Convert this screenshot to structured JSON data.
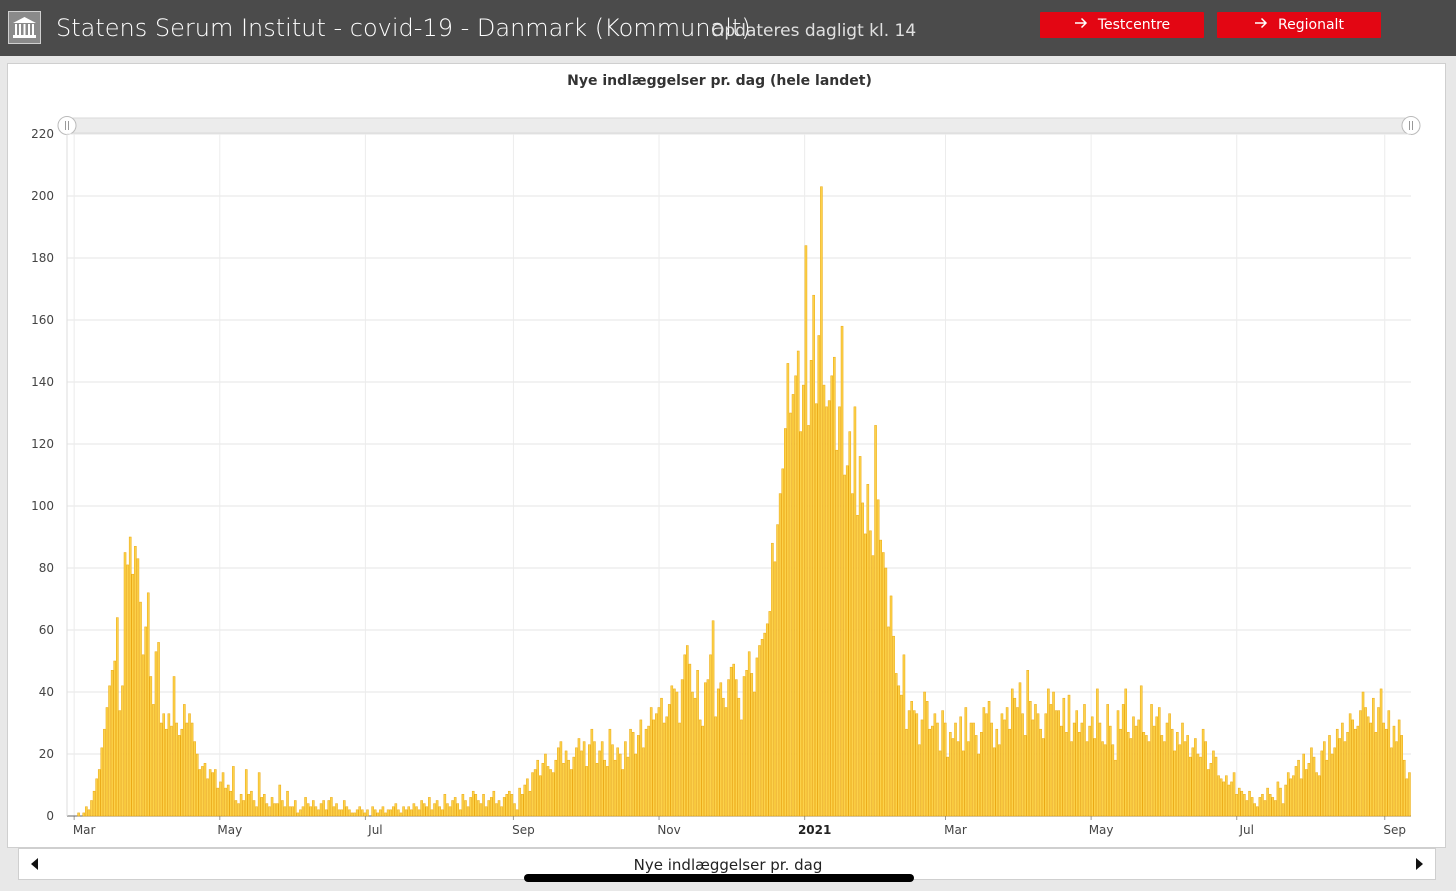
{
  "header": {
    "title": "Statens Serum Institut - covid-19 - Danmark (Kommunalt)",
    "subtitle": "Opdateres dagligt kl. 14",
    "logo_icon": "institute-building-icon",
    "buttons": [
      {
        "label": "Testcentre",
        "icon": "arrow-right-icon"
      },
      {
        "label": "Regionalt",
        "icon": "arrow-right-icon"
      }
    ],
    "accent": "#e30613",
    "bar_color": "#4b4b4b"
  },
  "chart_title": "Nye indlæggelser pr. dag (hele landet)",
  "footer": {
    "label": "Nye indlæggelser pr. dag",
    "prev_icon": "triangle-left-icon",
    "next_icon": "triangle-right-icon"
  },
  "chart_data": {
    "type": "bar",
    "title": "Nye indlæggelser pr. dag (hele landet)",
    "xlabel": "",
    "ylabel": "",
    "ylim": [
      0,
      220
    ],
    "yticks": [
      0,
      20,
      40,
      60,
      80,
      100,
      120,
      140,
      160,
      180,
      200,
      220
    ],
    "x_start": "2020-02-27",
    "x_end": "2021-09-12",
    "xtick_labels": [
      {
        "date": "2020-03-01",
        "label": "Mar",
        "bold": false
      },
      {
        "date": "2020-05-01",
        "label": "May",
        "bold": false
      },
      {
        "date": "2020-07-01",
        "label": "Jul",
        "bold": false
      },
      {
        "date": "2020-09-01",
        "label": "Sep",
        "bold": false
      },
      {
        "date": "2020-11-01",
        "label": "Nov",
        "bold": false
      },
      {
        "date": "2021-01-01",
        "label": "2021",
        "bold": true
      },
      {
        "date": "2021-03-01",
        "label": "Mar",
        "bold": false
      },
      {
        "date": "2021-05-01",
        "label": "May",
        "bold": false
      },
      {
        "date": "2021-07-01",
        "label": "Jul",
        "bold": false
      },
      {
        "date": "2021-09-01",
        "label": "Sep",
        "bold": false
      }
    ],
    "grid": true,
    "bar_fill": "#fcd24a",
    "bar_stroke": "#eba812",
    "series": [
      {
        "values": [
          0,
          1,
          0,
          1,
          3,
          2,
          5,
          8,
          12,
          15,
          22,
          28,
          35,
          42,
          47,
          50,
          64,
          34,
          42,
          85,
          81,
          90,
          78,
          87,
          83,
          69,
          52,
          61,
          72,
          45,
          36,
          53,
          56,
          30,
          33,
          28,
          33,
          29,
          45,
          30,
          26,
          28,
          36,
          30,
          33,
          30,
          24,
          20,
          15,
          16,
          17,
          12,
          15,
          14,
          15,
          9,
          11,
          14,
          9,
          10,
          8,
          16,
          5,
          4,
          7,
          5,
          15,
          7,
          8,
          5,
          3,
          14,
          6,
          7,
          4,
          3,
          6,
          4,
          4,
          10,
          5,
          3,
          8,
          3,
          3,
          5,
          1,
          2,
          3,
          6,
          4,
          3,
          5,
          3,
          2,
          4,
          5,
          2,
          5,
          6,
          3,
          4,
          2,
          2,
          5,
          3,
          2,
          1,
          1,
          2,
          3,
          2,
          1,
          2,
          0,
          3,
          2,
          1,
          2,
          3,
          1,
          2,
          2,
          3,
          4,
          2,
          1,
          3,
          2,
          3,
          2,
          4,
          3,
          2,
          5,
          4,
          3,
          6,
          2,
          4,
          5,
          3,
          2,
          7,
          4,
          3,
          5,
          6,
          4,
          2,
          7,
          5,
          3,
          6,
          8,
          7,
          5,
          4,
          7,
          3,
          5,
          6,
          8,
          4,
          5,
          3,
          6,
          7,
          8,
          7,
          4,
          2,
          9,
          7,
          10,
          12,
          8,
          14,
          15,
          18,
          13,
          17,
          20,
          16,
          15,
          14,
          18,
          22,
          24,
          17,
          21,
          18,
          15,
          19,
          22,
          25,
          21,
          24,
          16,
          23,
          28,
          24,
          17,
          21,
          24,
          18,
          16,
          28,
          23,
          18,
          22,
          20,
          15,
          24,
          19,
          28,
          27,
          20,
          26,
          31,
          22,
          28,
          29,
          35,
          31,
          33,
          35,
          38,
          30,
          32,
          36,
          42,
          41,
          40,
          30,
          44,
          52,
          55,
          49,
          40,
          38,
          47,
          31,
          29,
          43,
          44,
          52,
          63,
          32,
          41,
          43,
          38,
          35,
          44,
          48,
          49,
          44,
          38,
          31,
          45,
          47,
          53,
          46,
          40,
          51,
          55,
          57,
          59,
          62,
          66,
          88,
          82,
          94,
          104,
          112,
          125,
          146,
          130,
          136,
          142,
          150,
          124,
          139,
          184,
          126,
          147,
          168,
          133,
          155,
          203,
          139,
          132,
          134,
          142,
          148,
          118,
          132,
          158,
          110,
          113,
          124,
          104,
          132,
          97,
          116,
          101,
          91,
          107,
          92,
          84,
          126,
          102,
          89,
          85,
          80,
          61,
          71,
          58,
          46,
          42,
          39,
          52,
          28,
          34,
          37,
          34,
          33,
          23,
          31,
          40,
          37,
          28,
          29,
          33,
          30,
          21,
          34,
          30,
          19,
          27,
          25,
          30,
          24,
          32,
          21,
          35,
          24,
          30,
          30,
          26,
          20,
          27,
          35,
          33,
          37,
          30,
          22,
          28,
          23,
          33,
          31,
          35,
          28,
          41,
          38,
          35,
          43,
          33,
          26,
          47,
          37,
          31,
          36,
          33,
          28,
          25,
          33,
          41,
          36,
          40,
          34,
          34,
          29,
          38,
          27,
          39,
          24,
          30,
          34,
          27,
          30,
          36,
          24,
          29,
          32,
          25,
          41,
          30,
          24,
          23,
          36,
          29,
          23,
          18,
          34,
          28,
          36,
          41,
          27,
          25,
          32,
          29,
          31,
          42,
          27,
          26,
          24,
          36,
          29,
          32,
          35,
          26,
          24,
          30,
          33,
          28,
          21,
          27,
          23,
          30,
          24,
          26,
          19,
          22,
          25,
          20,
          19,
          28,
          24,
          15,
          17,
          21,
          19,
          13,
          12,
          11,
          13,
          10,
          11,
          14,
          7,
          9,
          8,
          7,
          5,
          8,
          6,
          4,
          3,
          6,
          7,
          5,
          9,
          7,
          6,
          5,
          11,
          9,
          4,
          10,
          14,
          12,
          13,
          16,
          18,
          12,
          20,
          15,
          17,
          22,
          19,
          14,
          13,
          21,
          24,
          18,
          26,
          20,
          22,
          28,
          25,
          30,
          24,
          27,
          33,
          31,
          28,
          29,
          34,
          40,
          35,
          32,
          30,
          38,
          27,
          35,
          41,
          30,
          28,
          34,
          22,
          29,
          24,
          31,
          26,
          18,
          12,
          14
        ]
      }
    ]
  }
}
